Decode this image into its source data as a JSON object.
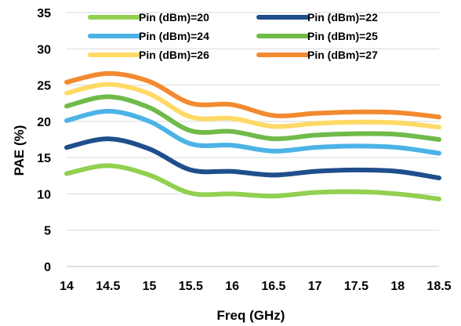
{
  "chart_data": {
    "type": "line",
    "title": "",
    "xlabel": "Freq (GHz)",
    "ylabel": "PAE (%)",
    "xlim": [
      14,
      18.5
    ],
    "ylim": [
      0,
      35
    ],
    "x": [
      14,
      14.5,
      15,
      15.5,
      16,
      16.5,
      17,
      17.5,
      18,
      18.5
    ],
    "x_ticks": [
      "14",
      "14.5",
      "15",
      "15.5",
      "16",
      "16.5",
      "17",
      "17.5",
      "18",
      "18.5"
    ],
    "y_ticks": [
      "0",
      "5",
      "10",
      "15",
      "20",
      "25",
      "30",
      "35"
    ],
    "grid": "horizontal",
    "legend_position": "top",
    "series": [
      {
        "name": "Pin (dBm)=20",
        "color": "#92d050",
        "values": [
          12.8,
          13.9,
          12.6,
          10.1,
          10.0,
          9.7,
          10.2,
          10.3,
          10.0,
          9.3
        ]
      },
      {
        "name": "Pin (dBm)=22",
        "color": "#1f4e8c",
        "values": [
          16.4,
          17.6,
          16.2,
          13.3,
          13.1,
          12.6,
          13.1,
          13.3,
          13.1,
          12.2
        ]
      },
      {
        "name": "Pin (dBm)=24",
        "color": "#4db3e6",
        "values": [
          20.1,
          21.4,
          20.0,
          16.9,
          16.7,
          15.9,
          16.4,
          16.6,
          16.4,
          15.6
        ]
      },
      {
        "name": "Pin (dBm)=25",
        "color": "#70ba4a",
        "values": [
          22.1,
          23.4,
          21.9,
          18.7,
          18.6,
          17.6,
          18.1,
          18.3,
          18.2,
          17.5
        ]
      },
      {
        "name": "Pin (dBm)=26",
        "color": "#ffd966",
        "values": [
          23.9,
          25.1,
          23.8,
          20.6,
          20.4,
          19.3,
          19.7,
          19.9,
          19.8,
          19.2
        ]
      },
      {
        "name": "Pin (dBm)=27",
        "color": "#f28a30",
        "values": [
          25.4,
          26.6,
          25.5,
          22.5,
          22.3,
          20.8,
          21.1,
          21.3,
          21.2,
          20.6
        ]
      }
    ]
  }
}
